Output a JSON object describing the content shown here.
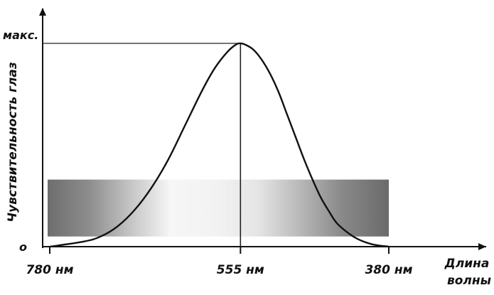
{
  "chart_data": {
    "type": "line",
    "title": "",
    "ylabel": "Чувствительность глаз",
    "xlabel": "Длина волны",
    "xlabel_lines": [
      "Длина",
      "волны"
    ],
    "x_ticks": [
      {
        "value": 780,
        "label": "780 нм"
      },
      {
        "value": 555,
        "label": "555 нм"
      },
      {
        "value": 380,
        "label": "380 нм"
      }
    ],
    "y_ticks": [
      {
        "value": 0,
        "label": "о"
      },
      {
        "value": 1,
        "label": "макс."
      }
    ],
    "x_reversed": true,
    "xlim": [
      780,
      380
    ],
    "ylim": [
      0,
      1
    ],
    "peak": {
      "x": 555,
      "y": 1
    },
    "series": [
      {
        "x": [
          780,
          740,
          720,
          700,
          680,
          660,
          640,
          620,
          600,
          585,
          570,
          560,
          555,
          550,
          540,
          530,
          520,
          510,
          500,
          490,
          480,
          470,
          460,
          450,
          440,
          420,
          400,
          380
        ],
        "y": [
          0.0,
          0.025,
          0.05,
          0.1,
          0.18,
          0.29,
          0.43,
          0.6,
          0.77,
          0.88,
          0.96,
          0.995,
          1.0,
          0.995,
          0.97,
          0.92,
          0.85,
          0.76,
          0.65,
          0.54,
          0.43,
          0.33,
          0.24,
          0.17,
          0.11,
          0.045,
          0.012,
          0.0
        ]
      }
    ],
    "spectrum_band": {
      "x_range": [
        780,
        380
      ],
      "y_range": [
        0.05,
        0.33
      ],
      "stops": [
        {
          "offset": 0.0,
          "color": "#6e6e6e"
        },
        {
          "offset": 0.12,
          "color": "#8c8c8c"
        },
        {
          "offset": 0.25,
          "color": "#c8c8c8"
        },
        {
          "offset": 0.36,
          "color": "#f6f6f6"
        },
        {
          "offset": 0.5,
          "color": "#f2f2f2"
        },
        {
          "offset": 0.62,
          "color": "#e4e4e4"
        },
        {
          "offset": 0.74,
          "color": "#b8b8b8"
        },
        {
          "offset": 0.86,
          "color": "#8a8a8a"
        },
        {
          "offset": 1.0,
          "color": "#6a6a6a"
        }
      ]
    },
    "grid": false,
    "colors": {
      "curve": "#111111",
      "axis": "#111111",
      "guide": "#222222"
    }
  }
}
